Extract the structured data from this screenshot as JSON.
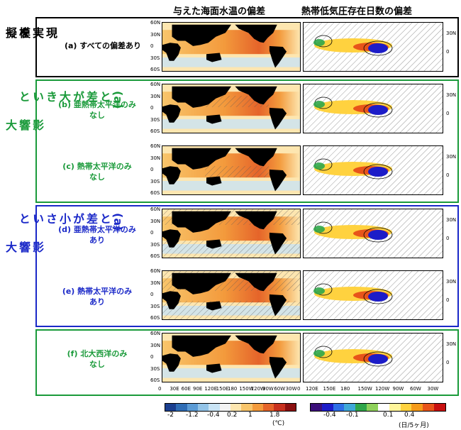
{
  "headers": {
    "sst": "与えた海面水温の偏差",
    "tc": "熱帯低気圧存在日数の偏差"
  },
  "groups": {
    "realistic": {
      "line1": "現実を",
      "line2": "模擬",
      "color": "#000000"
    },
    "large_diff": {
      "line1": "(a)と差が大きいと",
      "line2": "影響大",
      "color": "#1a9a3a"
    },
    "small_diff": {
      "line1": "(a)と差が小さいと",
      "line2": "影響大",
      "color": "#1a28c8"
    }
  },
  "experiments": [
    {
      "id": "a",
      "line1": "(a) すべての偏差あり",
      "line2": "",
      "color": "#000000"
    },
    {
      "id": "b",
      "line1": "(b) 亜熱帯太平洋のみ",
      "line2": "なし",
      "color": "#1a9a3a"
    },
    {
      "id": "c",
      "line1": "(c) 熱帯太平洋のみ",
      "line2": "なし",
      "color": "#1a9a3a"
    },
    {
      "id": "d",
      "line1": "(d) 亜熱帯太平洋のみ",
      "line2": "あり",
      "color": "#1a28c8"
    },
    {
      "id": "e",
      "line1": "(e) 熱帯太平洋のみ",
      "line2": "あり",
      "color": "#1a28c8"
    },
    {
      "id": "f",
      "line1": "(f) 北大西洋のみ",
      "line2": "なし",
      "color": "#1a9a3a"
    }
  ],
  "lat_left": [
    "60N",
    "30N",
    "0",
    "30S",
    "60S"
  ],
  "lat_right": [
    "30N",
    "0"
  ],
  "lon_sst": [
    "0",
    "30E",
    "60E",
    "90E",
    "120E",
    "150E",
    "180",
    "150W",
    "120W",
    "90W",
    "60W",
    "30W",
    "0"
  ],
  "lon_tc": [
    "120E",
    "150E",
    "180",
    "150W",
    "120W",
    "90W",
    "60W",
    "30W"
  ],
  "colorbar_sst": {
    "ticks": [
      "-2",
      "-1.2",
      "-0.4",
      "0.2",
      "1",
      "1.8"
    ],
    "unit": "(℃)",
    "colors": [
      "#1b3f8f",
      "#2f6db5",
      "#5b9bd5",
      "#93c4e8",
      "#c9e4f5",
      "#f3f3f3",
      "#fde6b0",
      "#f8c56b",
      "#f39a3c",
      "#e5642a",
      "#c8311e",
      "#8b1010"
    ]
  },
  "colorbar_tc": {
    "ticks": [
      "-0.4",
      "-0.1",
      "0.1",
      "0.4"
    ],
    "unit": "(日/5ヶ月)",
    "colors": [
      "#3b0f7a",
      "#1c1cc8",
      "#2d6ee6",
      "#3fa8d8",
      "#2fa64a",
      "#8fd15b",
      "#ffffff",
      "#fff59a",
      "#ffd23f",
      "#f59a1a",
      "#e8541a",
      "#c81010"
    ]
  }
}
